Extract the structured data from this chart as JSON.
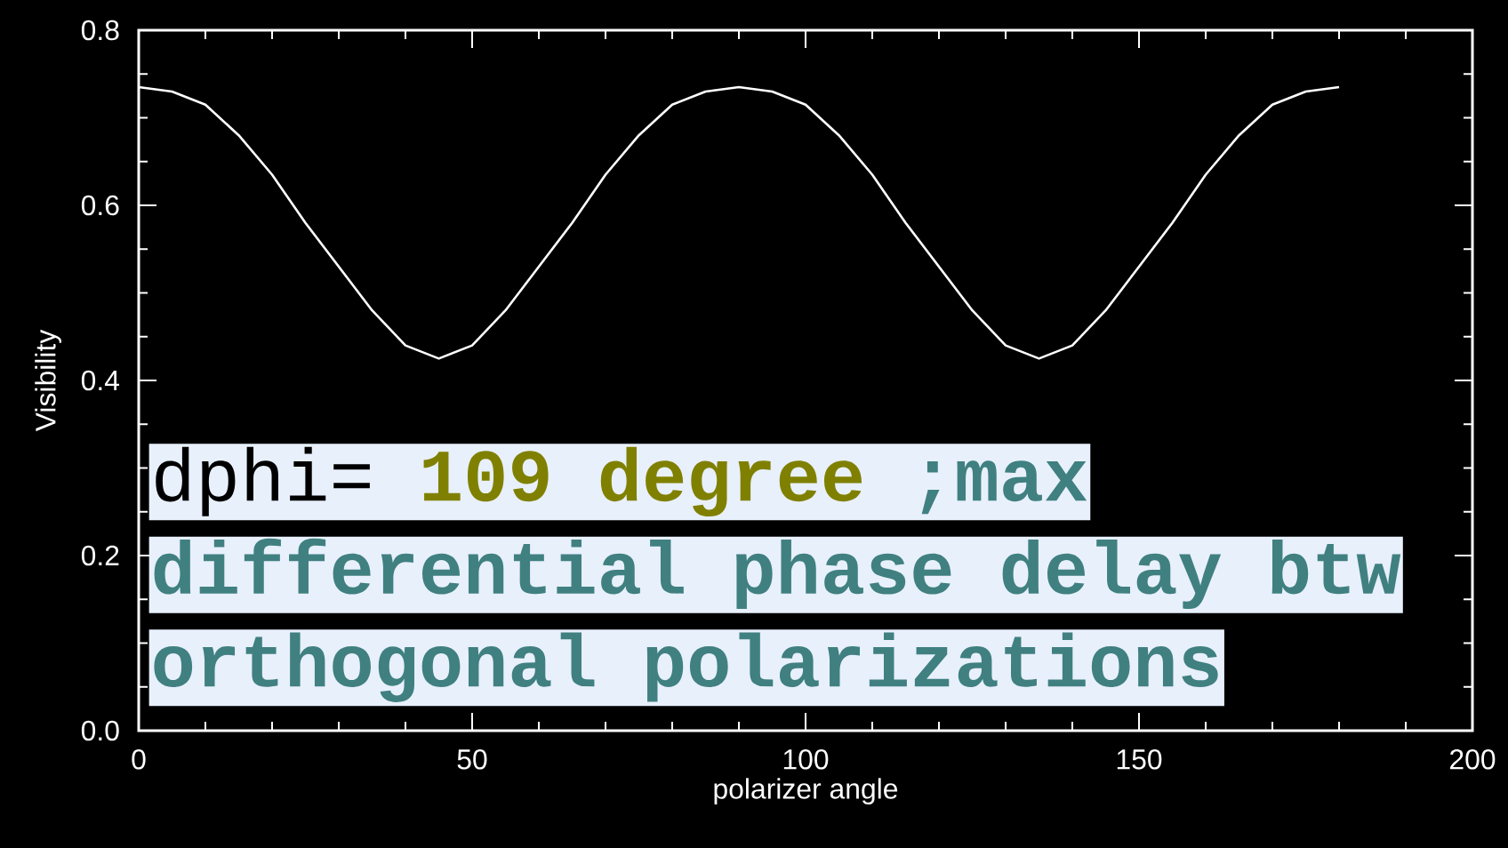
{
  "chart_data": {
    "type": "line",
    "xlabel": "polarizer angle",
    "ylabel": "Visibility",
    "x": [
      0,
      5,
      10,
      15,
      20,
      25,
      30,
      35,
      40,
      45,
      50,
      55,
      60,
      65,
      70,
      75,
      80,
      85,
      90,
      95,
      100,
      105,
      110,
      115,
      120,
      125,
      130,
      135,
      140,
      145,
      150,
      155,
      160,
      165,
      170,
      175,
      180
    ],
    "series": [
      {
        "color": "#ffffff",
        "values": [
          0.735,
          0.73,
          0.715,
          0.68,
          0.635,
          0.58,
          0.53,
          0.48,
          0.44,
          0.425,
          0.44,
          0.48,
          0.53,
          0.58,
          0.635,
          0.68,
          0.715,
          0.73,
          0.735,
          0.73,
          0.715,
          0.68,
          0.635,
          0.58,
          0.53,
          0.48,
          0.44,
          0.425,
          0.44,
          0.48,
          0.53,
          0.58,
          0.635,
          0.68,
          0.715,
          0.73,
          0.735
        ]
      }
    ],
    "xlim": [
      0,
      200
    ],
    "xticks": [
      0,
      50,
      100,
      150,
      200
    ],
    "ylim": [
      0,
      0.8
    ],
    "yticks": [
      {
        "value": 0,
        "label": "0.0"
      },
      {
        "value": 0.2,
        "label": "0.2"
      },
      {
        "value": 0.4,
        "label": "0.4"
      },
      {
        "value": 0.6,
        "label": "0.6"
      },
      {
        "value": 0.8,
        "label": "0.8"
      }
    ],
    "grid": false,
    "marker": "none",
    "line_style": "solid",
    "annotations": [
      "dphi=",
      "109 degree",
      ";max",
      "differential phase delay btw",
      "orthogonal polarizations"
    ]
  }
}
